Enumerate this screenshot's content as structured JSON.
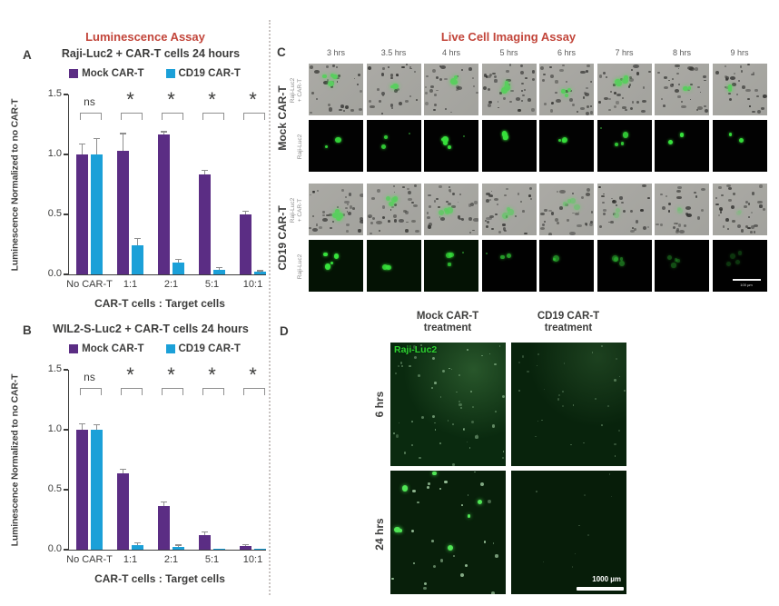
{
  "figure": {
    "left_section_title": "Luminescence Assay",
    "right_section_title": "Live Cell Imaging Assay",
    "colors": {
      "accent_red": "#c2453a",
      "mock_purple": "#5b2d84",
      "cd19_blue": "#1ba0d8",
      "text_dark": "#3d3d3c",
      "error_bar_gray": "#8f8f8f",
      "signal_green": "#3ade3a"
    }
  },
  "chart_data": [
    {
      "type": "bar",
      "panel": "A",
      "title": "Raji-Luc2 + CAR-T cells 24 hours",
      "categories": [
        "No CAR-T",
        "1:1",
        "2:1",
        "5:1",
        "10:1"
      ],
      "series": [
        {
          "name": "Mock CAR-T",
          "color": "#5b2d84",
          "values": [
            1.0,
            1.03,
            1.17,
            0.83,
            0.5
          ],
          "errors": [
            0.08,
            0.14,
            0.015,
            0.035,
            0.02
          ]
        },
        {
          "name": "CD19 CAR-T",
          "color": "#1ba0d8",
          "values": [
            1.0,
            0.24,
            0.1,
            0.04,
            0.02
          ],
          "errors": [
            0.13,
            0.055,
            0.02,
            0.012,
            0.006
          ]
        }
      ],
      "significance": [
        "ns",
        "*",
        "*",
        "*",
        "*"
      ],
      "xlabel": "CAR-T cells : Target cells",
      "ylabel": "Luminescence Normalized to no CAR-T",
      "yticks": [
        0.0,
        0.5,
        1.0,
        1.5
      ],
      "ylim": [
        0,
        1.5
      ],
      "grid": false,
      "legend_position": "top"
    },
    {
      "type": "bar",
      "panel": "B",
      "title": "WIL2-S-Luc2 + CAR-T cells 24 hours",
      "categories": [
        "No CAR-T",
        "1:1",
        "2:1",
        "5:1",
        "10:1"
      ],
      "series": [
        {
          "name": "Mock CAR-T",
          "color": "#5b2d84",
          "values": [
            1.0,
            0.64,
            0.36,
            0.12,
            0.03
          ],
          "errors": [
            0.045,
            0.025,
            0.035,
            0.022,
            0.008
          ]
        },
        {
          "name": "CD19 CAR-T",
          "color": "#1ba0d8",
          "values": [
            1.0,
            0.04,
            0.025,
            0.01,
            0.006
          ],
          "errors": [
            0.035,
            0.012,
            0.008,
            0.004,
            0.003
          ]
        }
      ],
      "significance": [
        "ns",
        "*",
        "*",
        "*",
        "*"
      ],
      "xlabel": "CAR-T cells : Target cells",
      "ylabel": "Luminescence Normalized to no CAR-T",
      "yticks": [
        0.0,
        0.5,
        1.0,
        1.5
      ],
      "ylim": [
        0,
        1.5
      ],
      "grid": false,
      "legend_position": "top"
    }
  ],
  "panel_c": {
    "label": "C",
    "timepoints": [
      "3 hrs",
      "3.5 hrs",
      "4 hrs",
      "5 hrs",
      "6 hrs",
      "7 hrs",
      "8 hrs",
      "9 hrs"
    ],
    "groups": [
      {
        "name": "Mock CAR-T",
        "rows": [
          {
            "label": "Raji-Luc2 + CAR-T",
            "type": "overlay"
          },
          {
            "label": "Raji-Luc2",
            "type": "fluorescence"
          }
        ]
      },
      {
        "name": "CD19 CAR-T",
        "rows": [
          {
            "label": "Raji-Luc2 + CAR-T",
            "type": "overlay"
          },
          {
            "label": "Raji-Luc2",
            "type": "fluorescence"
          }
        ]
      }
    ],
    "scale_bar": "100 µm"
  },
  "panel_d": {
    "label": "D",
    "columns": [
      "Mock CAR-T\ntreatment",
      "CD19 CAR-T\ntreatment"
    ],
    "rows": [
      "6 hrs",
      "24 hrs"
    ],
    "image_label": "Raji-Luc2",
    "scale_bar": "1000 µm"
  }
}
